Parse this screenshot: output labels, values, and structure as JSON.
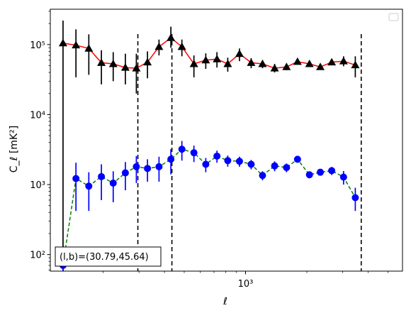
{
  "chart_data": {
    "type": "scatter",
    "xscale": "log",
    "yscale": "log",
    "xlim": [
      110,
      5900
    ],
    "ylim": [
      58,
      320000
    ],
    "xlabel": "ℓ",
    "ylabel": "C_ℓ [mK²]",
    "x_ticks": [
      {
        "value": 1000,
        "label": "10³"
      }
    ],
    "y_ticks": [
      {
        "value": 100,
        "label": "10²"
      },
      {
        "value": 1000,
        "label": "10³"
      },
      {
        "value": 10000,
        "label": "10⁴"
      },
      {
        "value": 100000,
        "label": "10⁵"
      }
    ],
    "vlines": [
      296,
      435,
      3700
    ],
    "legend": "top-right, empty",
    "annotation": "(l,b)=(30.79,45.64)",
    "series": [
      {
        "marker": "triangle",
        "marker_color": "#000000",
        "line_color": "#ff0000",
        "line_style": "solid",
        "points": [
          {
            "x": 127,
            "y": 105000,
            "lo": 40,
            "hi": 220000
          },
          {
            "x": 147,
            "y": 98000,
            "lo": 34000,
            "hi": 165000
          },
          {
            "x": 170,
            "y": 88000,
            "lo": 37000,
            "hi": 140000
          },
          {
            "x": 196,
            "y": 55000,
            "lo": 27000,
            "hi": 83000
          },
          {
            "x": 224,
            "y": 53000,
            "lo": 30000,
            "hi": 78000
          },
          {
            "x": 257,
            "y": 47000,
            "lo": 27000,
            "hi": 74000
          },
          {
            "x": 291,
            "y": 46000,
            "lo": 20000,
            "hi": 74000
          },
          {
            "x": 330,
            "y": 56000,
            "lo": 33000,
            "hi": 80000
          },
          {
            "x": 376,
            "y": 93000,
            "lo": 70000,
            "hi": 118000
          },
          {
            "x": 430,
            "y": 125000,
            "lo": 90000,
            "hi": 180000
          },
          {
            "x": 487,
            "y": 93000,
            "lo": 68000,
            "hi": 118000
          },
          {
            "x": 558,
            "y": 53000,
            "lo": 34000,
            "hi": 70000
          },
          {
            "x": 638,
            "y": 60000,
            "lo": 45000,
            "hi": 75000
          },
          {
            "x": 724,
            "y": 62000,
            "lo": 47000,
            "hi": 78000
          },
          {
            "x": 818,
            "y": 53000,
            "lo": 41000,
            "hi": 65000
          },
          {
            "x": 934,
            "y": 74000,
            "lo": 58000,
            "hi": 88000
          },
          {
            "x": 1066,
            "y": 55000,
            "lo": 46000,
            "hi": 64000
          },
          {
            "x": 1212,
            "y": 53000,
            "lo": 46000,
            "hi": 60000
          },
          {
            "x": 1390,
            "y": 46000,
            "lo": 40000,
            "hi": 53000
          },
          {
            "x": 1590,
            "y": 48000,
            "lo": 43000,
            "hi": 53000
          },
          {
            "x": 1800,
            "y": 57000,
            "lo": 52000,
            "hi": 62000
          },
          {
            "x": 2060,
            "y": 53000,
            "lo": 49000,
            "hi": 57000
          },
          {
            "x": 2330,
            "y": 48000,
            "lo": 44000,
            "hi": 52000
          },
          {
            "x": 2650,
            "y": 56000,
            "lo": 51000,
            "hi": 61000
          },
          {
            "x": 3030,
            "y": 58000,
            "lo": 49000,
            "hi": 68000
          },
          {
            "x": 3460,
            "y": 51000,
            "lo": 34000,
            "hi": 68000
          }
        ]
      },
      {
        "marker": "circle",
        "marker_color": "#0000ff",
        "line_color": "#008000",
        "line_style": "dashed",
        "points": [
          {
            "x": 127,
            "y": 70,
            "lo": 30,
            "hi": 110
          },
          {
            "x": 147,
            "y": 1220,
            "lo": 420,
            "hi": 2050
          },
          {
            "x": 170,
            "y": 950,
            "lo": 420,
            "hi": 1500
          },
          {
            "x": 196,
            "y": 1300,
            "lo": 600,
            "hi": 1950
          },
          {
            "x": 224,
            "y": 1050,
            "lo": 560,
            "hi": 1550
          },
          {
            "x": 257,
            "y": 1470,
            "lo": 830,
            "hi": 2100
          },
          {
            "x": 291,
            "y": 1800,
            "lo": 1050,
            "hi": 2550
          },
          {
            "x": 330,
            "y": 1700,
            "lo": 1100,
            "hi": 2300
          },
          {
            "x": 376,
            "y": 1800,
            "lo": 1100,
            "hi": 2500
          },
          {
            "x": 430,
            "y": 2300,
            "lo": 1400,
            "hi": 3200
          },
          {
            "x": 487,
            "y": 3200,
            "lo": 2200,
            "hi": 4200
          },
          {
            "x": 558,
            "y": 2850,
            "lo": 2100,
            "hi": 3600
          },
          {
            "x": 638,
            "y": 1950,
            "lo": 1500,
            "hi": 2400
          },
          {
            "x": 724,
            "y": 2550,
            "lo": 2050,
            "hi": 3050
          },
          {
            "x": 818,
            "y": 2200,
            "lo": 1800,
            "hi": 2600
          },
          {
            "x": 934,
            "y": 2150,
            "lo": 1800,
            "hi": 2500
          },
          {
            "x": 1066,
            "y": 1950,
            "lo": 1650,
            "hi": 2250
          },
          {
            "x": 1212,
            "y": 1350,
            "lo": 1150,
            "hi": 1550
          },
          {
            "x": 1390,
            "y": 1850,
            "lo": 1550,
            "hi": 2150
          },
          {
            "x": 1590,
            "y": 1750,
            "lo": 1500,
            "hi": 2000
          },
          {
            "x": 1800,
            "y": 2300,
            "lo": 2050,
            "hi": 2550
          },
          {
            "x": 2060,
            "y": 1380,
            "lo": 1230,
            "hi": 1530
          },
          {
            "x": 2330,
            "y": 1500,
            "lo": 1350,
            "hi": 1650
          },
          {
            "x": 2650,
            "y": 1580,
            "lo": 1370,
            "hi": 1790
          },
          {
            "x": 3030,
            "y": 1280,
            "lo": 1000,
            "hi": 1560
          },
          {
            "x": 3460,
            "y": 650,
            "lo": 420,
            "hi": 900
          }
        ]
      }
    ]
  }
}
